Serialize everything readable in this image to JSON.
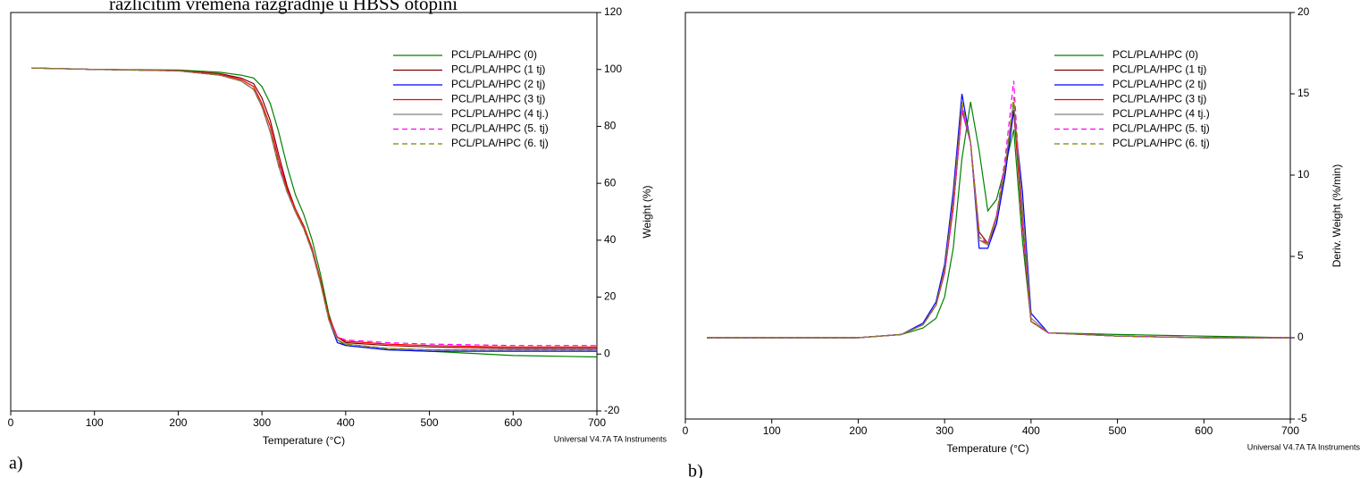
{
  "caption": "različitim vremena razgradnje u HBSS otopini",
  "chart_data": [
    {
      "type": "line",
      "panel_label": "a)",
      "xlabel": "Temperature (°C)",
      "ylabel": "Weight (%)",
      "footer": "Universal V4.7A TA Instruments",
      "xlim": [
        0,
        700
      ],
      "xticks": [
        0,
        100,
        200,
        300,
        400,
        500,
        600,
        700
      ],
      "ylim": [
        -20,
        120
      ],
      "yticks": [
        -20,
        0,
        20,
        40,
        60,
        80,
        100,
        120
      ],
      "x": [
        25,
        100,
        200,
        250,
        275,
        290,
        300,
        310,
        320,
        330,
        340,
        350,
        360,
        370,
        380,
        390,
        400,
        450,
        500,
        600,
        700
      ],
      "series": [
        {
          "name": "PCL/PLA/HPC (0)",
          "color": "#008000",
          "line_style": "solid",
          "values": [
            100.5,
            100,
            99.8,
            99,
            98,
            97,
            94,
            88,
            78,
            66,
            56,
            49,
            40,
            28,
            14,
            5,
            3,
            1.5,
            1,
            -0.5,
            -1
          ]
        },
        {
          "name": "PCL/PLA/HPC (1 tj)",
          "color": "#800000",
          "line_style": "solid",
          "values": [
            100.5,
            100,
            99.6,
            98.5,
            97,
            95,
            90,
            82,
            70,
            59,
            51,
            45,
            37,
            26,
            13,
            6,
            4,
            3,
            2.5,
            2,
            2
          ]
        },
        {
          "name": "PCL/PLA/HPC (2 tj)",
          "color": "#0000ff",
          "line_style": "solid",
          "values": [
            100.5,
            100,
            99.5,
            98,
            96,
            93,
            87,
            78,
            66,
            57,
            50,
            44,
            36,
            25,
            12,
            4,
            3,
            1.5,
            1,
            1,
            1
          ]
        },
        {
          "name": "PCL/PLA/HPC (3 tj)",
          "color": "#ff0000",
          "line_style": "solid",
          "values": [
            100.5,
            100,
            99.6,
            98.3,
            96.5,
            94,
            88,
            80,
            68,
            58,
            51,
            45,
            37,
            26,
            13,
            6,
            4.5,
            3.5,
            3,
            2.5,
            2.5
          ]
        },
        {
          "name": "PCL/PLA/HPC (4 tj.)",
          "color": "#808080",
          "line_style": "solid",
          "values": [
            100.5,
            100,
            99.5,
            98,
            96,
            93,
            87,
            78,
            66,
            57,
            50,
            44,
            36,
            25,
            12,
            5,
            3.5,
            2,
            1.5,
            1.5,
            1.5
          ]
        },
        {
          "name": "PCL/PLA/HPC (5. tj)",
          "color": "#ff00ff",
          "line_style": "dashed",
          "values": [
            100.5,
            100,
            99.5,
            98,
            96,
            93,
            87,
            78,
            67,
            57,
            50,
            44,
            36,
            25,
            12,
            6,
            5,
            4,
            3.5,
            3,
            3
          ]
        },
        {
          "name": "PCL/PLA/HPC (6. tj)",
          "color": "#808000",
          "line_style": "dashed",
          "values": [
            100.5,
            100,
            99.5,
            98,
            96,
            93,
            87,
            78,
            66,
            57,
            50,
            44,
            36,
            25,
            12,
            5,
            3.5,
            2,
            1.5,
            1.5,
            1.5
          ]
        }
      ]
    },
    {
      "type": "line",
      "panel_label": "b)",
      "xlabel": "Temperature (°C)",
      "ylabel": "Deriv. Weight (%/min)",
      "footer": "Universal V4.7A TA Instruments",
      "xlim": [
        0,
        700
      ],
      "xticks": [
        0,
        100,
        200,
        300,
        400,
        500,
        600,
        700
      ],
      "ylim": [
        -5,
        20
      ],
      "yticks": [
        -5,
        0,
        5,
        10,
        15,
        20
      ],
      "x": [
        25,
        100,
        200,
        250,
        275,
        290,
        300,
        310,
        320,
        330,
        340,
        350,
        360,
        370,
        380,
        390,
        400,
        420,
        500,
        600,
        700
      ],
      "series": [
        {
          "name": "PCL/PLA/HPC (0)",
          "color": "#008000",
          "line_style": "solid",
          "values": [
            0,
            0,
            0,
            0.2,
            0.6,
            1.2,
            2.5,
            5.5,
            11,
            14.5,
            11.5,
            7.8,
            8.5,
            10.5,
            12.8,
            6,
            1,
            0.3,
            0.2,
            0.1,
            0
          ]
        },
        {
          "name": "PCL/PLA/HPC (1 tj)",
          "color": "#800000",
          "line_style": "solid",
          "values": [
            0,
            0,
            0,
            0.2,
            0.8,
            2,
            4,
            8,
            14,
            12,
            6.5,
            5.8,
            7,
            10,
            14,
            7,
            1,
            0.3,
            0.1,
            0,
            0
          ]
        },
        {
          "name": "PCL/PLA/HPC (2 tj)",
          "color": "#0000ff",
          "line_style": "solid",
          "values": [
            0,
            0,
            0,
            0.2,
            0.9,
            2.2,
            4.5,
            9,
            15,
            12,
            5.5,
            5.5,
            7,
            10,
            14,
            9,
            1.5,
            0.3,
            0.1,
            0,
            0
          ]
        },
        {
          "name": "PCL/PLA/HPC (3 tj)",
          "color": "#ff0000",
          "line_style": "solid",
          "values": [
            0,
            0,
            0,
            0.2,
            0.8,
            2,
            4,
            8,
            14,
            12,
            6,
            5.8,
            7.5,
            10.5,
            14.5,
            7,
            1,
            0.3,
            0.1,
            0,
            0
          ]
        },
        {
          "name": "PCL/PLA/HPC (4 tj.)",
          "color": "#808080",
          "line_style": "solid",
          "values": [
            0,
            0,
            0,
            0.2,
            0.8,
            2,
            4.2,
            8.5,
            14.3,
            12,
            6,
            5.7,
            7.3,
            10.5,
            14.5,
            8,
            1.2,
            0.3,
            0.1,
            0,
            0
          ]
        },
        {
          "name": "PCL/PLA/HPC (5. tj)",
          "color": "#ff00ff",
          "line_style": "dashed",
          "values": [
            0,
            0,
            0,
            0.2,
            0.8,
            2,
            4,
            8,
            14,
            12,
            6.2,
            5.8,
            7.5,
            11,
            15.8,
            7,
            1,
            0.3,
            0.1,
            0,
            0
          ]
        },
        {
          "name": "PCL/PLA/HPC (6. tj)",
          "color": "#808000",
          "line_style": "dashed",
          "values": [
            0,
            0,
            0,
            0.2,
            0.8,
            2,
            4.2,
            8.5,
            14.5,
            12,
            6.2,
            5.8,
            7.5,
            10.5,
            14.8,
            7.5,
            1,
            0.3,
            0.1,
            0,
            0
          ]
        }
      ]
    }
  ]
}
